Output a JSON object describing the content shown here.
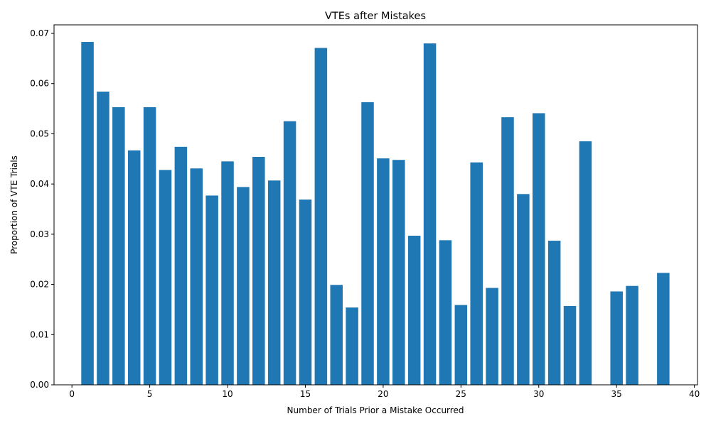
{
  "chart_data": {
    "type": "bar",
    "title": "VTEs after Mistakes",
    "xlabel": "Number of Trials Prior a Mistake Occurred",
    "ylabel": "Proportion of VTE Trials",
    "xlim": [
      -1.15,
      40.2
    ],
    "ylim": [
      0,
      0.0717
    ],
    "x_ticks": [
      0,
      5,
      10,
      15,
      20,
      25,
      30,
      35,
      40
    ],
    "x_tick_labels": [
      "0",
      "5",
      "10",
      "15",
      "20",
      "25",
      "30",
      "35",
      "40"
    ],
    "y_ticks": [
      0,
      0.01,
      0.02,
      0.03,
      0.04,
      0.05,
      0.06,
      0.07
    ],
    "y_tick_labels": [
      "0.00",
      "0.01",
      "0.02",
      "0.03",
      "0.04",
      "0.05",
      "0.06",
      "0.07"
    ],
    "bar_color": "#1f77b4",
    "grid": false,
    "x": [
      1,
      2,
      3,
      4,
      5,
      6,
      7,
      8,
      9,
      10,
      11,
      12,
      13,
      14,
      15,
      16,
      17,
      18,
      19,
      20,
      21,
      22,
      23,
      24,
      25,
      26,
      27,
      28,
      29,
      30,
      31,
      32,
      33,
      35,
      36,
      38
    ],
    "values": [
      0.0683,
      0.0584,
      0.0553,
      0.0467,
      0.0553,
      0.0428,
      0.0474,
      0.0431,
      0.0377,
      0.0445,
      0.0394,
      0.0454,
      0.0407,
      0.0525,
      0.0369,
      0.0671,
      0.0199,
      0.0154,
      0.0563,
      0.0451,
      0.0448,
      0.0297,
      0.068,
      0.0288,
      0.0159,
      0.0443,
      0.0193,
      0.0533,
      0.038,
      0.0541,
      0.0287,
      0.0157,
      0.0485,
      0.0186,
      0.0197,
      0.0223
    ]
  }
}
